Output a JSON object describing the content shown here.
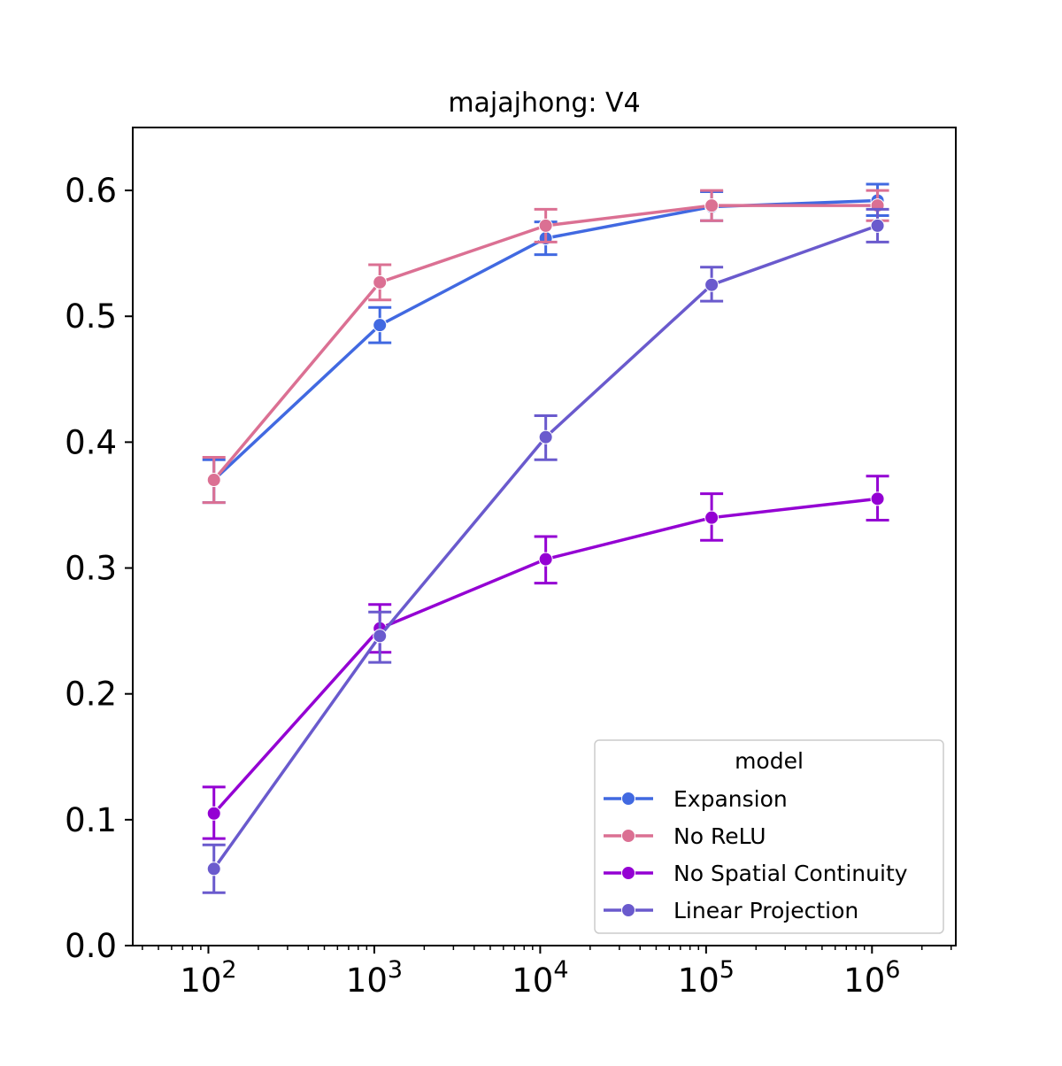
{
  "chart_data": {
    "type": "line",
    "title": "majajhong: V4",
    "xlabel": "",
    "ylabel": "",
    "x_scale": "log",
    "xlim": [
      35,
      3200000
    ],
    "ylim": [
      0.0,
      0.65
    ],
    "x_ticks": [
      {
        "value": 100,
        "base": "10",
        "exp": "2"
      },
      {
        "value": 1000,
        "base": "10",
        "exp": "3"
      },
      {
        "value": 10000,
        "base": "10",
        "exp": "4"
      },
      {
        "value": 100000,
        "base": "10",
        "exp": "5"
      },
      {
        "value": 1000000,
        "base": "10",
        "exp": "6"
      }
    ],
    "y_ticks": [
      "0.0",
      "0.1",
      "0.2",
      "0.3",
      "0.4",
      "0.5",
      "0.6"
    ],
    "grid": false,
    "legend": {
      "title": "model",
      "placement": "lower-right"
    },
    "series": [
      {
        "name": "Expansion",
        "color": "#4169E1",
        "x": [
          108,
          1080,
          10800,
          108000,
          1080000
        ],
        "y": [
          0.37,
          0.493,
          0.562,
          0.587,
          0.592
        ],
        "err_low": [
          0.352,
          0.479,
          0.549,
          0.576,
          0.58
        ],
        "err_high": [
          0.386,
          0.507,
          0.575,
          0.599,
          0.605
        ]
      },
      {
        "name": "No ReLU",
        "color": "#DB7093",
        "x": [
          108,
          1080,
          10800,
          108000,
          1080000
        ],
        "y": [
          0.37,
          0.527,
          0.572,
          0.588,
          0.588
        ],
        "err_low": [
          0.352,
          0.513,
          0.559,
          0.576,
          0.576
        ],
        "err_high": [
          0.388,
          0.541,
          0.585,
          0.6,
          0.6
        ]
      },
      {
        "name": "No Spatial Continuity",
        "color": "#9400D3",
        "x": [
          108,
          1080,
          10800,
          108000,
          1080000
        ],
        "y": [
          0.105,
          0.252,
          0.307,
          0.34,
          0.355
        ],
        "err_low": [
          0.085,
          0.233,
          0.288,
          0.322,
          0.338
        ],
        "err_high": [
          0.126,
          0.271,
          0.325,
          0.359,
          0.373
        ]
      },
      {
        "name": "Linear Projection",
        "color": "#6A5ACD",
        "x": [
          108,
          1080,
          10800,
          108000,
          1080000
        ],
        "y": [
          0.061,
          0.246,
          0.404,
          0.525,
          0.572
        ],
        "err_low": [
          0.042,
          0.225,
          0.386,
          0.512,
          0.559
        ],
        "err_high": [
          0.08,
          0.265,
          0.421,
          0.539,
          0.585
        ]
      }
    ]
  }
}
